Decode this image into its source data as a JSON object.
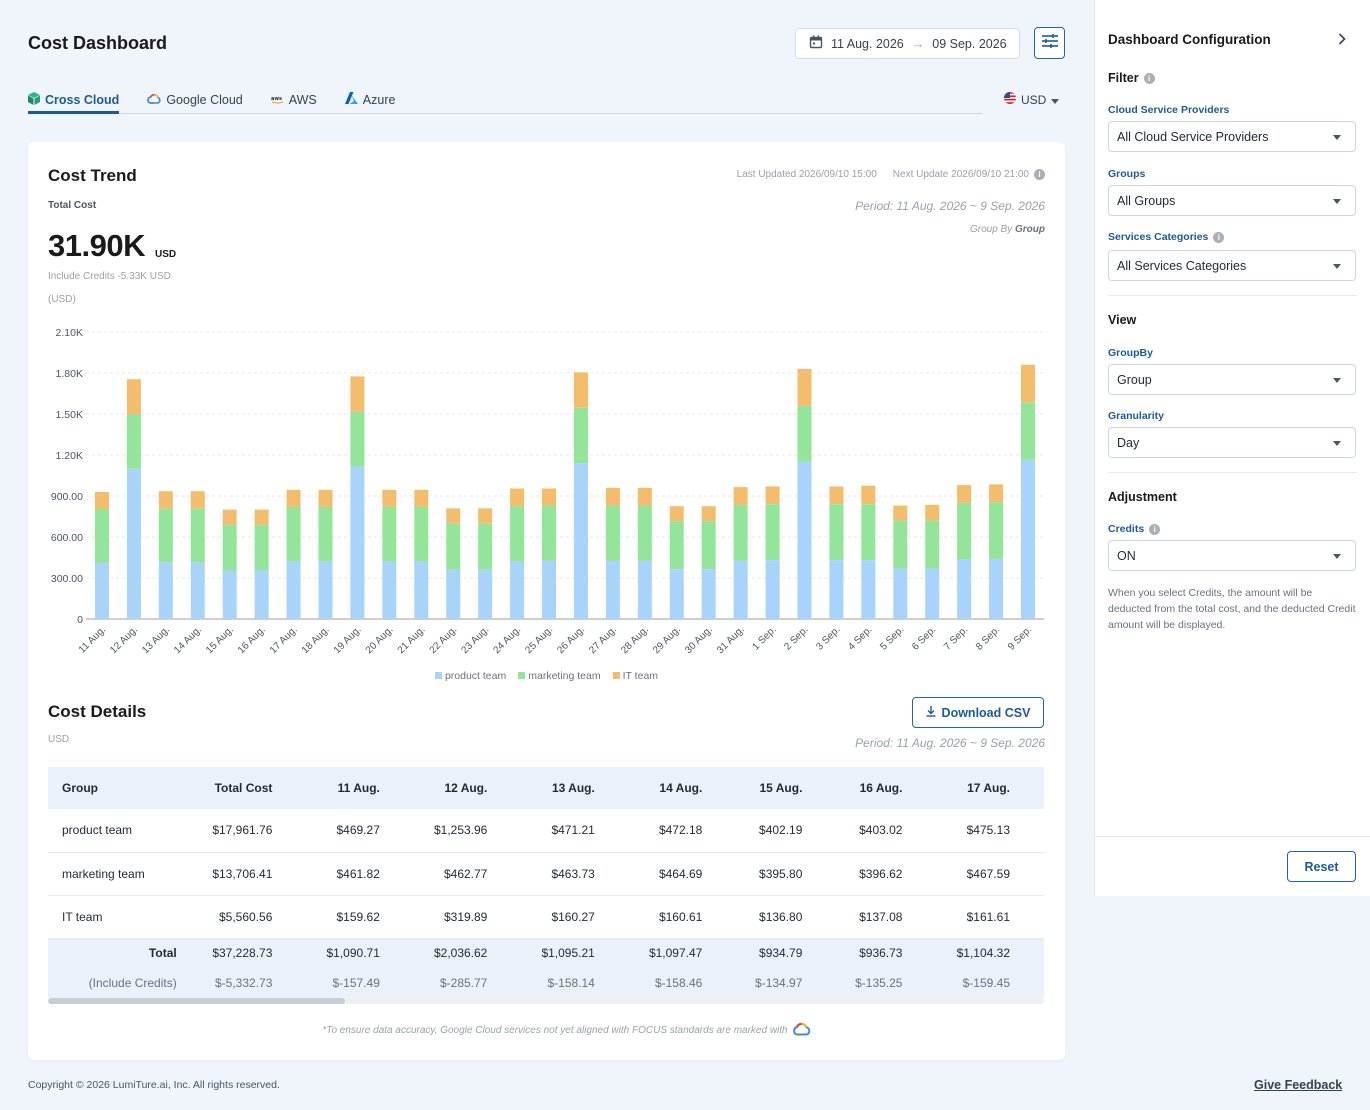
{
  "header": {
    "title": "Cost Dashboard",
    "date_from": "11 Aug. 2026",
    "date_to": "09 Sep. 2026",
    "date_arrow": "→"
  },
  "tabs": [
    {
      "label": "Cross Cloud",
      "icon": "cross-cloud-icon",
      "active": true
    },
    {
      "label": "Google Cloud",
      "icon": "google-cloud-icon",
      "active": false
    },
    {
      "label": "AWS",
      "icon": "aws-icon",
      "active": false
    },
    {
      "label": "Azure",
      "icon": "azure-icon",
      "active": false
    }
  ],
  "currency": {
    "value": "USD",
    "icon": "us-flag-icon"
  },
  "trend": {
    "title": "Cost Trend",
    "last_updated": "Last Updated 2026/09/10 15:00",
    "next_update": "Next Update 2026/09/10 21:00",
    "total_label": "Total Cost",
    "total_value": "31.90K",
    "total_unit": "USD",
    "include_credits": "Include Credits -5.33K USD",
    "period": "Period: 11 Aug. 2026 ~ 9 Sep. 2026",
    "group_by_prefix": "Group By",
    "group_by_value": "Group",
    "unit_label": "(USD)"
  },
  "chart_data": {
    "type": "bar",
    "stacked": true,
    "categories": [
      "11 Aug.",
      "12 Aug.",
      "13 Aug.",
      "14 Aug.",
      "15 Aug.",
      "16 Aug.",
      "17 Aug.",
      "18 Aug.",
      "19 Aug.",
      "20 Aug.",
      "21 Aug.",
      "22 Aug.",
      "23 Aug.",
      "24 Aug.",
      "25 Aug.",
      "26 Aug.",
      "27 Aug.",
      "28 Aug.",
      "29 Aug.",
      "30 Aug.",
      "31 Aug.",
      "1 Sep.",
      "2 Sep.",
      "3 Sep.",
      "4 Sep.",
      "5 Sep.",
      "6 Sep.",
      "7 Sep.",
      "8 Sep.",
      "9 Sep."
    ],
    "series": [
      {
        "name": "product team",
        "color": "#a8d4fb",
        "values": [
          410,
          1100,
          415,
          415,
          355,
          355,
          420,
          420,
          1115,
          420,
          420,
          360,
          360,
          420,
          425,
          1140,
          425,
          425,
          365,
          365,
          425,
          430,
          1150,
          430,
          430,
          370,
          370,
          435,
          440,
          1165
        ]
      },
      {
        "name": "marketing team",
        "color": "#93e59a",
        "values": [
          395,
          400,
          395,
          395,
          335,
          335,
          400,
          400,
          400,
          400,
          400,
          340,
          340,
          405,
          405,
          405,
          405,
          405,
          350,
          350,
          410,
          410,
          410,
          410,
          410,
          350,
          350,
          415,
          415,
          420
        ]
      },
      {
        "name": "IT team",
        "color": "#f4bd6c",
        "values": [
          125,
          255,
          125,
          125,
          110,
          110,
          125,
          125,
          260,
          125,
          125,
          110,
          110,
          130,
          125,
          260,
          130,
          130,
          110,
          110,
          130,
          130,
          270,
          130,
          135,
          110,
          115,
          130,
          130,
          275
        ]
      }
    ],
    "yticks": [
      "0",
      "300.00",
      "600.00",
      "900.00",
      "1.20K",
      "1.50K",
      "1.80K",
      "2.10K"
    ],
    "ylim": [
      0,
      2100
    ],
    "legend_position": "bottom",
    "grid": true
  },
  "details": {
    "title": "Cost Details",
    "unit": "USD",
    "download_label": "Download CSV",
    "period": "Period: 11 Aug. 2026 ~ 9 Sep. 2026",
    "columns": [
      "Group",
      "Total Cost",
      "11 Aug.",
      "12 Aug.",
      "13 Aug.",
      "14 Aug.",
      "15 Aug.",
      "16 Aug.",
      "17 Aug."
    ],
    "rows": [
      [
        "product team",
        "$17,961.76",
        "$469.27",
        "$1,253.96",
        "$471.21",
        "$472.18",
        "$402.19",
        "$403.02",
        "$475.13"
      ],
      [
        "marketing team",
        "$13,706.41",
        "$461.82",
        "$462.77",
        "$463.73",
        "$464.69",
        "$395.80",
        "$396.62",
        "$467.59"
      ],
      [
        "IT team",
        "$5,560.56",
        "$159.62",
        "$319.89",
        "$160.27",
        "$160.61",
        "$136.80",
        "$137.08",
        "$161.61"
      ]
    ],
    "total": [
      "Total",
      "$37,228.73",
      "$1,090.71",
      "$2,036.62",
      "$1,095.21",
      "$1,097.47",
      "$934.79",
      "$936.73",
      "$1,104.32"
    ],
    "credits": [
      "(Include Credits)",
      "$-5,332.73",
      "$-157.49",
      "$-285.77",
      "$-158.14",
      "$-158.46",
      "$-134.97",
      "$-135.25",
      "$-159.45"
    ],
    "note": "*To ensure data accuracy, Google Cloud services not yet aligned with FOCUS standards are marked with"
  },
  "footer": {
    "copyright": "Copyright © 2026 LumiTure.ai, Inc. All rights reserved.",
    "feedback": "Give Feedback"
  },
  "panel": {
    "title": "Dashboard Configuration",
    "filter_title": "Filter",
    "csp_label": "Cloud Service Providers",
    "csp_value": "All Cloud Service Providers",
    "groups_label": "Groups",
    "groups_value": "All Groups",
    "svc_label": "Services Categories",
    "svc_value": "All Services Categories",
    "view_title": "View",
    "groupby_label": "GroupBy",
    "groupby_value": "Group",
    "gran_label": "Granularity",
    "gran_value": "Day",
    "adj_title": "Adjustment",
    "credits_label": "Credits",
    "credits_value": "ON",
    "credits_desc": "When you select Credits, the amount will be deducted from the total cost, and the deducted Credit amount will be displayed.",
    "reset_label": "Reset"
  }
}
